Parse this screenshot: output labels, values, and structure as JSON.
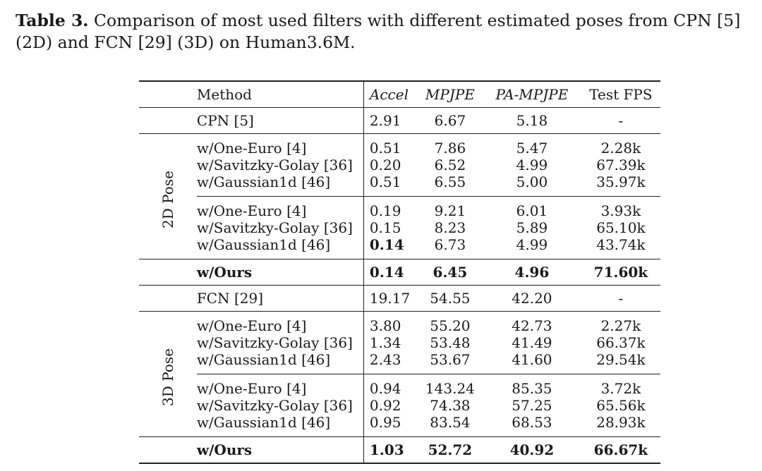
{
  "caption": {
    "label": "Table 3.",
    "text": "Comparison of most used filters with different estimated poses from CPN [5] (2D) and FCN [29] (3D) on Human3.6M."
  },
  "table": {
    "headers": {
      "method": "Method",
      "accel": "Accel",
      "mpjpe": "MPJPE",
      "pa_mpjpe": "PA-MPJPE",
      "fps": "Test FPS"
    },
    "sections": [
      {
        "label": "2D Pose",
        "baseline": {
          "method": "CPN [5]",
          "accel": "2.91",
          "mpjpe": "6.67",
          "pa_mpjpe": "5.18",
          "fps": "-"
        },
        "groups": [
          [
            {
              "method": "w/One-Euro [4]",
              "accel": "0.51",
              "mpjpe": "7.86",
              "pa_mpjpe": "5.47",
              "fps": "2.28k"
            },
            {
              "method": "w/Savitzky-Golay [36]",
              "accel": "0.20",
              "mpjpe": "6.52",
              "pa_mpjpe": "4.99",
              "fps": "67.39k"
            },
            {
              "method": "w/Gaussian1d [46]",
              "accel": "0.51",
              "mpjpe": "6.55",
              "pa_mpjpe": "5.00",
              "fps": "35.97k"
            }
          ],
          [
            {
              "method": "w/One-Euro [4]",
              "accel": "0.19",
              "mpjpe": "9.21",
              "pa_mpjpe": "6.01",
              "fps": "3.93k"
            },
            {
              "method": "w/Savitzky-Golay [36]",
              "accel": "0.15",
              "mpjpe": "8.23",
              "pa_mpjpe": "5.89",
              "fps": "65.10k"
            },
            {
              "method": "w/Gaussian1d [46]",
              "accel": "0.14",
              "mpjpe": "6.73",
              "pa_mpjpe": "4.99",
              "fps": "43.74k"
            }
          ]
        ],
        "ours": {
          "method": "w/Ours",
          "accel": "0.14",
          "mpjpe": "6.45",
          "pa_mpjpe": "4.96",
          "fps": "71.60k"
        }
      },
      {
        "label": "3D Pose",
        "baseline": {
          "method": "FCN [29]",
          "accel": "19.17",
          "mpjpe": "54.55",
          "pa_mpjpe": "42.20",
          "fps": "-"
        },
        "groups": [
          [
            {
              "method": "w/One-Euro [4]",
              "accel": "3.80",
              "mpjpe": "55.20",
              "pa_mpjpe": "42.73",
              "fps": "2.27k"
            },
            {
              "method": "w/Savitzky-Golay [36]",
              "accel": "1.34",
              "mpjpe": "53.48",
              "pa_mpjpe": "41.49",
              "fps": "66.37k"
            },
            {
              "method": "w/Gaussian1d [46]",
              "accel": "2.43",
              "mpjpe": "53.67",
              "pa_mpjpe": "41.60",
              "fps": "29.54k"
            }
          ],
          [
            {
              "method": "w/One-Euro [4]",
              "accel": "0.94",
              "mpjpe": "143.24",
              "pa_mpjpe": "85.35",
              "fps": "3.72k"
            },
            {
              "method": "w/Savitzky-Golay [36]",
              "accel": "0.92",
              "mpjpe": "74.38",
              "pa_mpjpe": "57.25",
              "fps": "65.56k"
            },
            {
              "method": "w/Gaussian1d [46]",
              "accel": "0.95",
              "mpjpe": "83.54",
              "pa_mpjpe": "68.53",
              "fps": "28.93k"
            }
          ]
        ],
        "ours": {
          "method": "w/Ours",
          "accel": "1.03",
          "mpjpe": "52.72",
          "pa_mpjpe": "40.92",
          "fps": "66.67k"
        }
      }
    ]
  }
}
